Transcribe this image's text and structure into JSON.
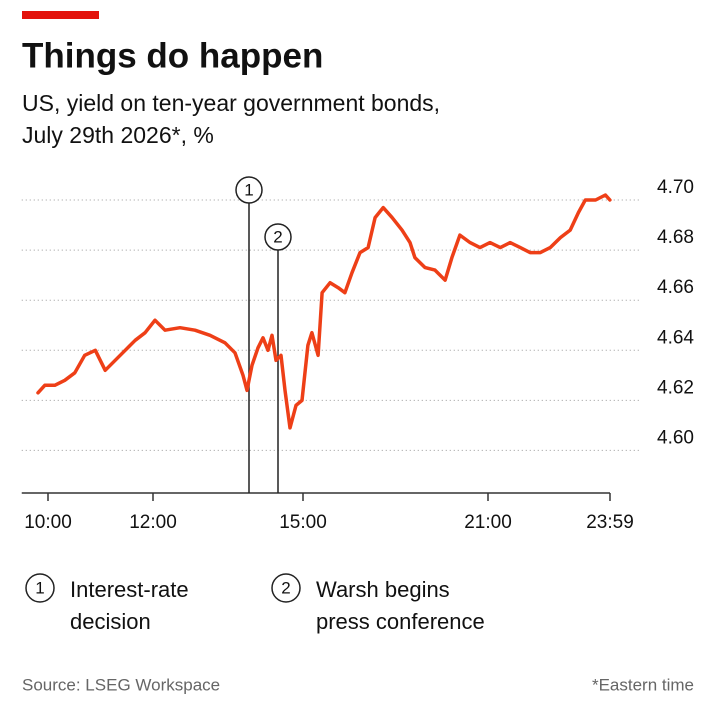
{
  "chart_data": {
    "type": "line",
    "title": "Things do happen",
    "subtitle": [
      "US, yield on ten-year government bonds,",
      "July 29th 2026*, %"
    ],
    "color": "#ee3f17",
    "x": [
      9.81,
      9.94,
      10.13,
      10.32,
      10.51,
      10.7,
      10.9,
      11.09,
      11.28,
      11.47,
      11.66,
      11.85,
      12.04,
      12.24,
      12.54,
      12.84,
      13.14,
      13.44,
      13.64,
      13.8,
      13.88,
      13.98,
      14.1,
      14.2,
      14.3,
      14.38,
      14.46,
      14.56,
      14.64,
      14.74,
      14.86,
      14.98,
      15.16,
      15.29,
      15.49,
      15.62,
      15.88,
      16.14,
      16.36,
      16.59,
      16.85,
      17.11,
      17.34,
      17.6,
      17.89,
      18.21,
      18.47,
      18.63,
      18.96,
      19.28,
      19.61,
      19.83,
      20.09,
      20.42,
      20.74,
      21.05,
      21.3,
      21.54,
      21.79,
      22.03,
      22.28,
      22.52,
      22.77,
      23.01,
      23.21,
      23.38,
      23.63,
      23.87,
      23.98
    ],
    "values": [
      4.623,
      4.626,
      4.626,
      4.628,
      4.631,
      4.638,
      4.64,
      4.632,
      4.636,
      4.64,
      4.644,
      4.647,
      4.652,
      4.648,
      4.649,
      4.648,
      4.646,
      4.643,
      4.639,
      4.63,
      4.624,
      4.634,
      4.641,
      4.645,
      4.64,
      4.646,
      4.636,
      4.638,
      4.624,
      4.609,
      4.618,
      4.62,
      4.642,
      4.647,
      4.638,
      4.663,
      4.667,
      4.665,
      4.663,
      4.671,
      4.679,
      4.681,
      4.693,
      4.697,
      4.693,
      4.688,
      4.683,
      4.677,
      4.673,
      4.672,
      4.668,
      4.677,
      4.686,
      4.683,
      4.681,
      4.683,
      4.681,
      4.683,
      4.681,
      4.679,
      4.679,
      4.681,
      4.685,
      4.688,
      4.695,
      4.7,
      4.7,
      4.702,
      4.7
    ],
    "xlim": [
      9.5,
      23.983
    ],
    "xticks": [
      {
        "value": 10,
        "label": "10:00"
      },
      {
        "value": 12,
        "label": "12:00"
      },
      {
        "value": 15,
        "label": "15:00"
      },
      {
        "value": 21,
        "label": "21:00"
      },
      {
        "value": 23.983,
        "label": "23:59"
      }
    ],
    "ylim": [
      4.583,
      4.71
    ],
    "yticks": [
      {
        "value": 4.6,
        "label": "4.60"
      },
      {
        "value": 4.62,
        "label": "4.62"
      },
      {
        "value": 4.64,
        "label": "4.64"
      },
      {
        "value": 4.66,
        "label": "4.66"
      },
      {
        "value": 4.68,
        "label": "4.68"
      },
      {
        "value": 4.7,
        "label": "4.70"
      }
    ],
    "grid": true,
    "events": [
      {
        "number": "1",
        "x": 13.92,
        "label": [
          "Interest-rate",
          "decision"
        ]
      },
      {
        "number": "2",
        "x": 14.5,
        "label": [
          "Warsh begins",
          "press conference"
        ]
      }
    ],
    "source": "Source: LSEG Workspace",
    "note": "*Eastern time"
  }
}
